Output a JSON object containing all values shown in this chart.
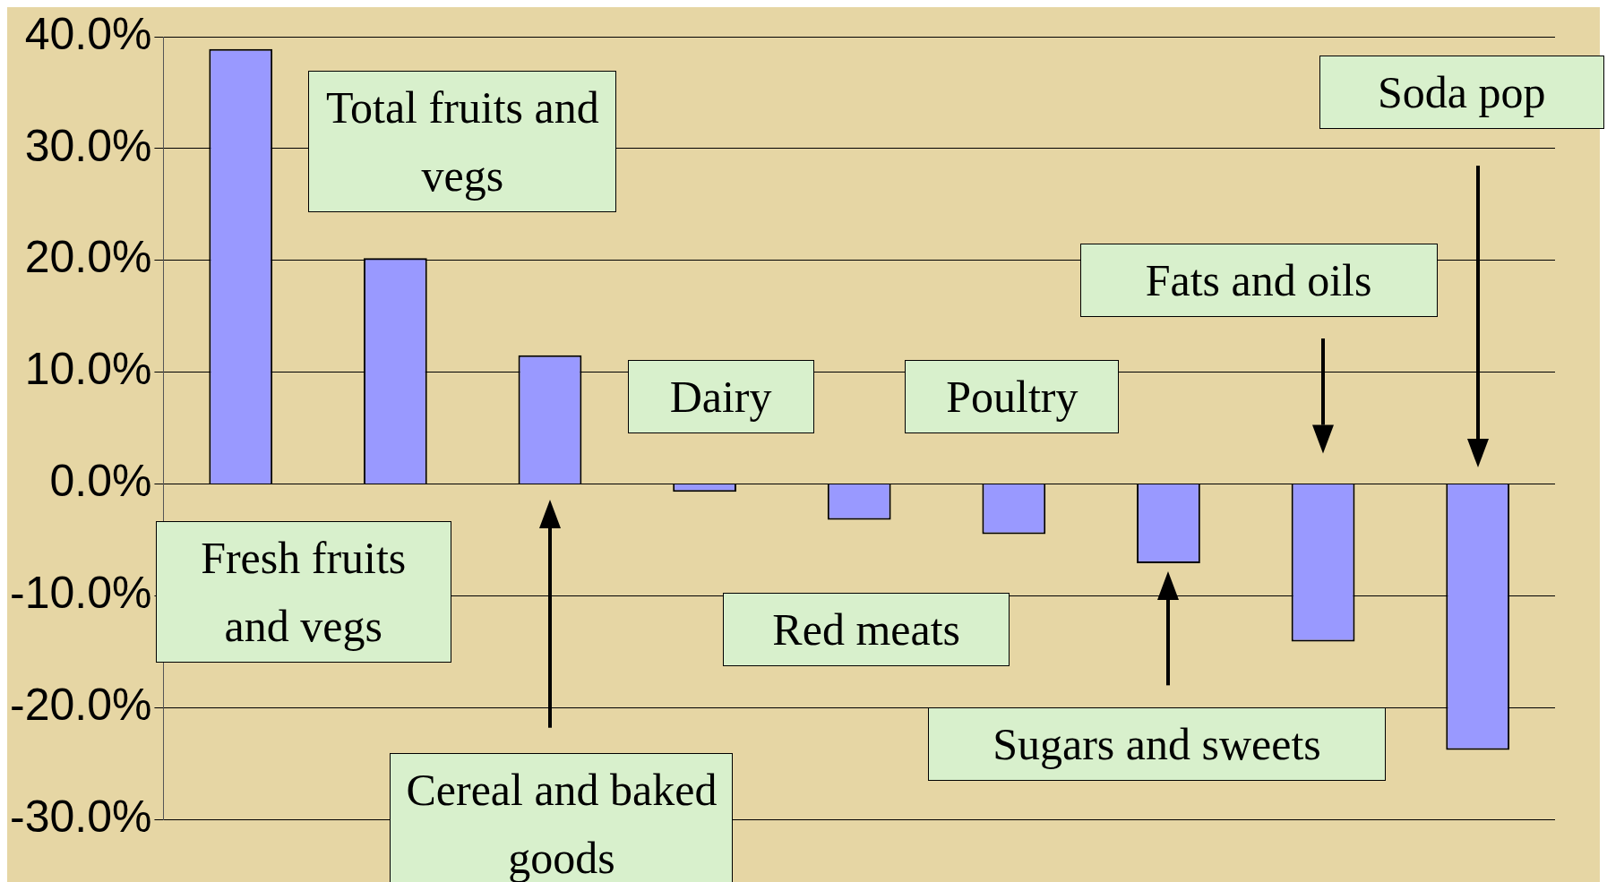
{
  "chart_data": {
    "type": "bar",
    "categories": [
      "Fresh fruits and vegs",
      "Total fruits and vegs",
      "Cereal and baked goods",
      "Dairy",
      "Red meats",
      "Poultry",
      "Sugars and sweets",
      "Fats and oils",
      "Soda pop"
    ],
    "values": [
      38.9,
      20.2,
      11.5,
      -0.7,
      -3.2,
      -4.5,
      -7.1,
      -14.1,
      -23.8
    ],
    "color": "#9999ff",
    "ylim": [
      -30,
      40
    ],
    "yticks": [
      {
        "value": -30,
        "label": "-30.0%"
      },
      {
        "value": -20,
        "label": "-20.0%"
      },
      {
        "value": -10,
        "label": "-10.0%"
      },
      {
        "value": 0,
        "label": "0.0%"
      },
      {
        "value": 10,
        "label": "10.0%"
      },
      {
        "value": 20,
        "label": "20.0%"
      },
      {
        "value": 30,
        "label": "30.0%"
      },
      {
        "value": 40,
        "label": "40.0%"
      }
    ],
    "grid": "y",
    "legend": false
  }
}
